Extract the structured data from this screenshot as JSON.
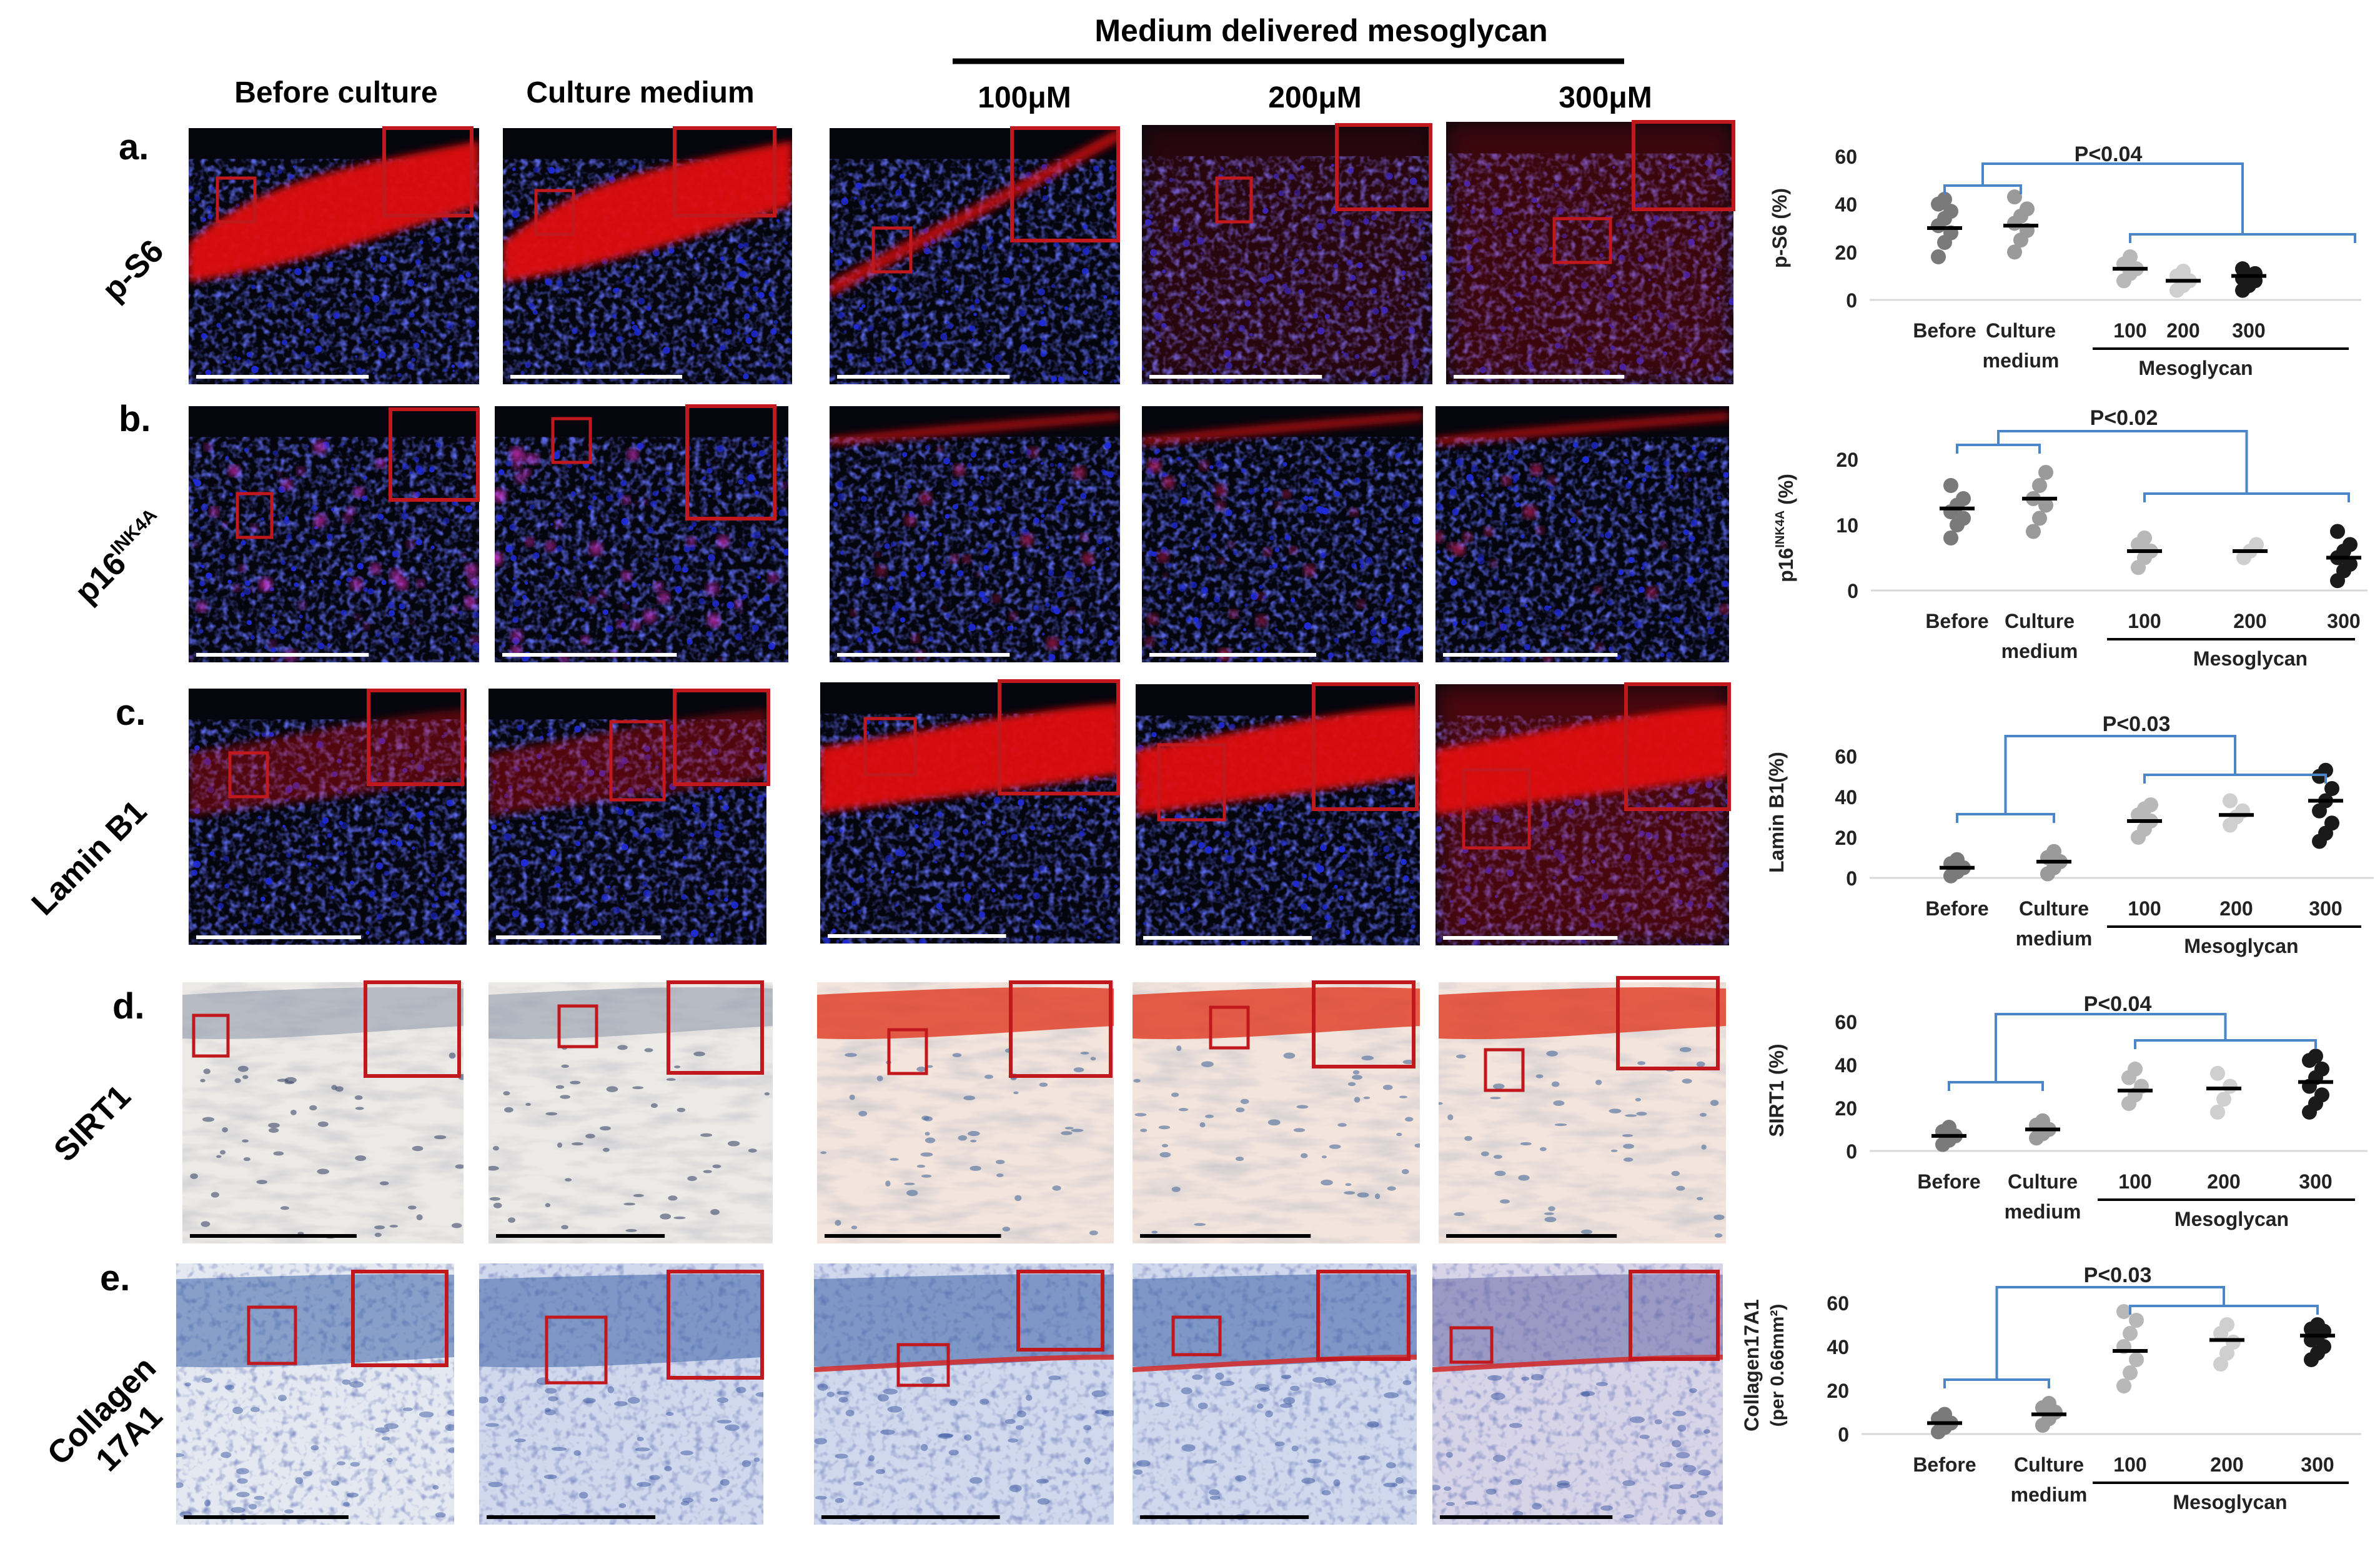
{
  "header": {
    "main_group": "Medium delivered mesoglycan",
    "columns": [
      "Before culture",
      "Culture medium",
      "100μM",
      "200μM",
      "300μM"
    ]
  },
  "rows": [
    {
      "letter": "a.",
      "marker": "p-S6",
      "stain": "fluorescence"
    },
    {
      "letter": "b.",
      "marker": "p16",
      "marker_sup": "INK4A",
      "stain": "fluorescence"
    },
    {
      "letter": "c.",
      "marker": "Lamin B1",
      "stain": "fluorescence"
    },
    {
      "letter": "d.",
      "marker": "SIRT1",
      "stain": "ihc-red"
    },
    {
      "letter": "e.",
      "marker": "Collagen",
      "marker2": "17A1",
      "stain": "ihc-blue"
    }
  ],
  "colors": {
    "nuclei_blue": "#1f2bd8",
    "stain_red": "#e01010",
    "box_red": "#c0181c",
    "bracket_blue": "#4a86c8",
    "dot_before": "#7a7a7a",
    "dot_medium": "#9a9a9a",
    "dot_100": "#b8b8b8",
    "dot_200": "#cfcfcf",
    "dot_300": "#1a1a1a"
  },
  "chart_data": [
    {
      "type": "scatter",
      "ylabel": "p-S6 (%)",
      "categories": [
        "Before",
        "Culture medium",
        "100",
        "200",
        "300"
      ],
      "group_label": "Mesoglycan",
      "pvalue": "P<0.04",
      "ylim": [
        0,
        60
      ],
      "yticks": [
        "0",
        "20",
        "40",
        "60"
      ],
      "points": [
        [
          18,
          24,
          28,
          31,
          34,
          37,
          40,
          42
        ],
        [
          20,
          25,
          29,
          32,
          35,
          38,
          43
        ],
        [
          8,
          11,
          13,
          15,
          18
        ],
        [
          4,
          6,
          8,
          10,
          12
        ],
        [
          4,
          6,
          8,
          9,
          10,
          11,
          13
        ]
      ],
      "means": [
        30,
        31,
        13,
        8,
        10
      ]
    },
    {
      "type": "scatter",
      "ylabel": "p16",
      "ylabel_sup": "INK4A",
      "ylabel_unit": " (%)",
      "categories": [
        "Before",
        "Culture medium",
        "100",
        "200",
        "300"
      ],
      "group_label": "Mesoglycan",
      "pvalue": "P<0.02",
      "ylim": [
        0,
        20
      ],
      "yticks": [
        "0",
        "10",
        "20"
      ],
      "points": [
        [
          8,
          10,
          11,
          12,
          13,
          14,
          16
        ],
        [
          9,
          11,
          13,
          14,
          16,
          18
        ],
        [
          3.5,
          5,
          6,
          7,
          8
        ],
        [
          5,
          6,
          7
        ],
        [
          1.5,
          3,
          4,
          5,
          6,
          7,
          9
        ]
      ],
      "means": [
        12.5,
        14,
        6,
        6,
        5
      ]
    },
    {
      "type": "scatter",
      "ylabel": "Lamin B1(%)",
      "categories": [
        "Before",
        "Culture medium",
        "100",
        "200",
        "300"
      ],
      "group_label": "Mesoglycan",
      "pvalue": "P<0.03",
      "ylim": [
        0,
        60
      ],
      "yticks": [
        "0",
        "20",
        "40",
        "60"
      ],
      "points": [
        [
          1,
          3,
          5,
          7,
          9
        ],
        [
          2,
          5,
          8,
          10,
          13
        ],
        [
          20,
          24,
          28,
          31,
          34,
          36
        ],
        [
          26,
          30,
          33,
          38
        ],
        [
          18,
          22,
          27,
          33,
          38,
          44,
          50,
          53
        ]
      ],
      "means": [
        5,
        8,
        28,
        31,
        38
      ]
    },
    {
      "type": "scatter",
      "ylabel": "SIRT1  (%)",
      "categories": [
        "Before",
        "Culture medium",
        "100",
        "200",
        "300"
      ],
      "group_label": "Mesoglycan",
      "pvalue": "P<0.04",
      "ylim": [
        0,
        60
      ],
      "yticks": [
        "0",
        "20",
        "40",
        "60"
      ],
      "points": [
        [
          3,
          5,
          7,
          9,
          11
        ],
        [
          6,
          8,
          10,
          12,
          14
        ],
        [
          22,
          26,
          30,
          34,
          38
        ],
        [
          18,
          24,
          30,
          36
        ],
        [
          18,
          22,
          26,
          30,
          34,
          38,
          42,
          44
        ]
      ],
      "means": [
        7,
        10,
        28,
        29,
        32
      ]
    },
    {
      "type": "scatter",
      "ylabel": "Collagen17A1",
      "ylabel2": "(per 0.66mm²)",
      "categories": [
        "Before",
        "Culture medium",
        "100",
        "200",
        "300"
      ],
      "group_label": "Mesoglycan",
      "pvalue": "P<0.03",
      "ylim": [
        0,
        60
      ],
      "yticks": [
        "0",
        "20",
        "40",
        "60"
      ],
      "points": [
        [
          1,
          3,
          5,
          7,
          9
        ],
        [
          4,
          7,
          10,
          12,
          14
        ],
        [
          22,
          28,
          34,
          40,
          46,
          52,
          56
        ],
        [
          32,
          37,
          42,
          46,
          50
        ],
        [
          34,
          37,
          40,
          43,
          45,
          47,
          48,
          50
        ]
      ],
      "means": [
        5,
        9,
        38,
        43,
        45
      ]
    }
  ]
}
